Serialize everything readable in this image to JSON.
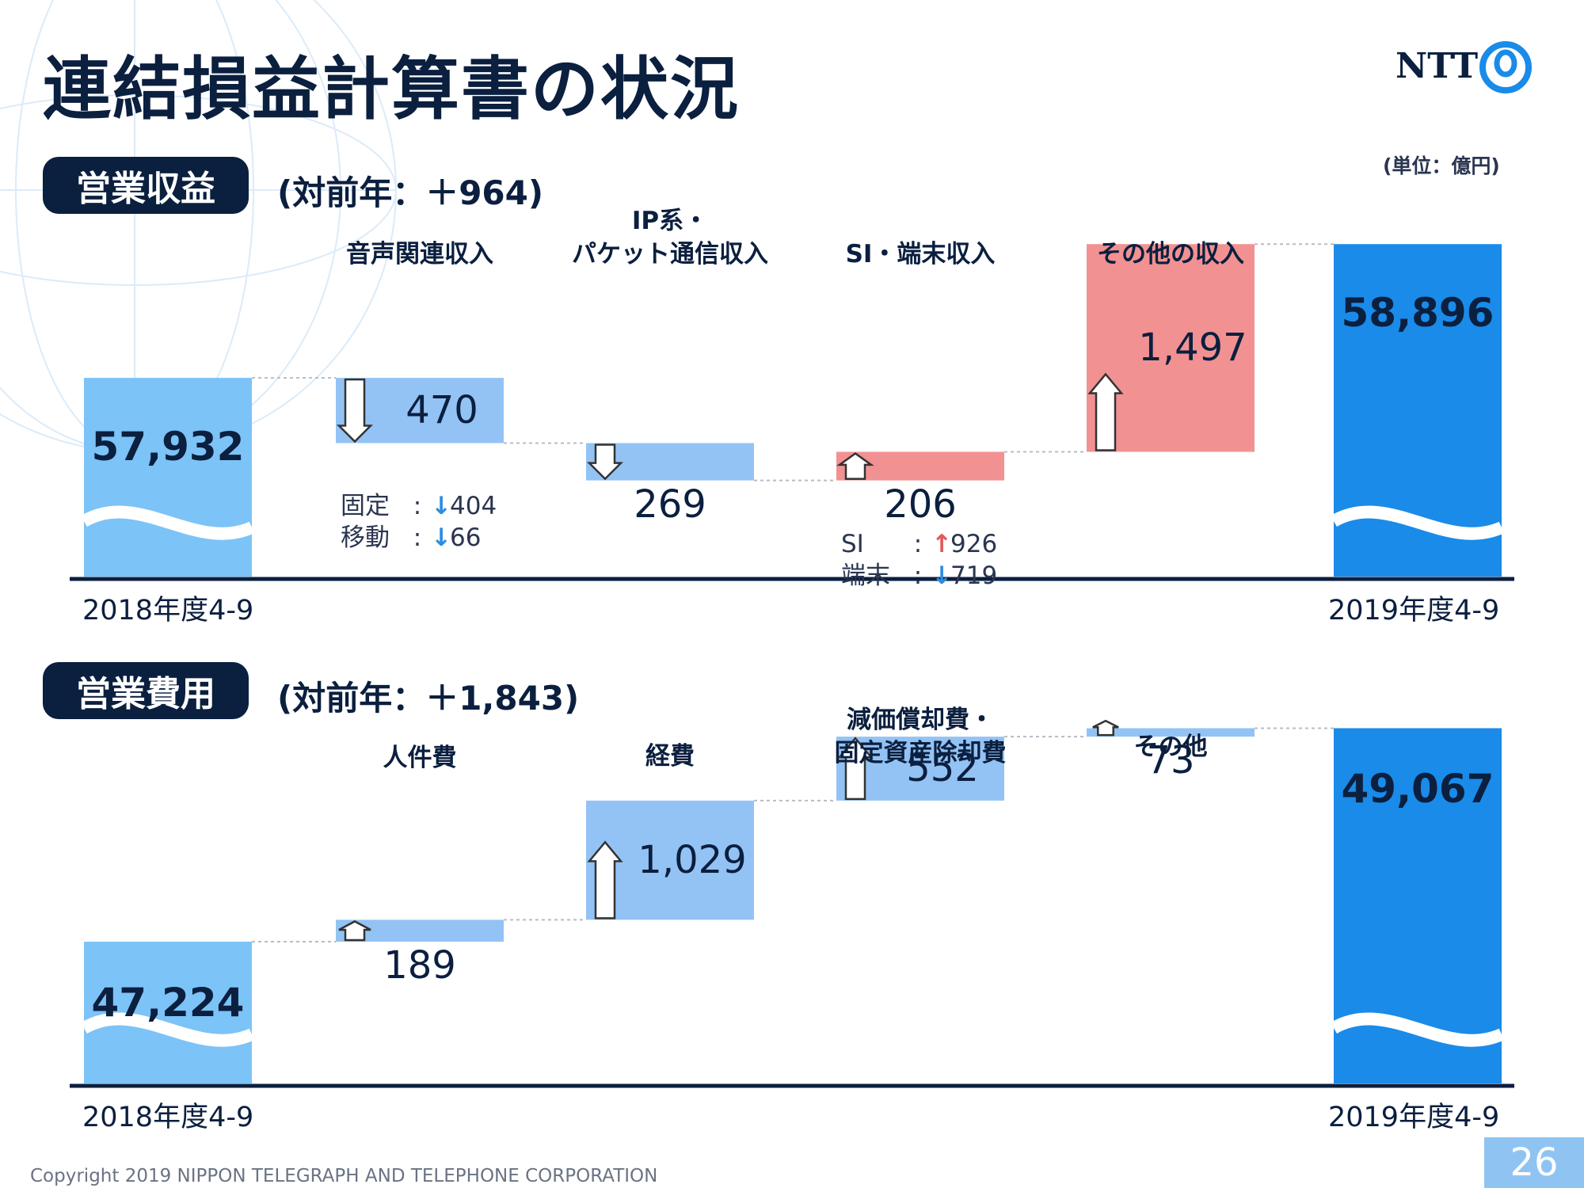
{
  "title": "連結損益計算書の状況",
  "logo_text": "NTT",
  "unit": "(単位：億円)",
  "colors": {
    "navy": "#0b1f3f",
    "total_bar": "#7cc3f7",
    "total_bar_end": "#1a8be8",
    "decrease_bar": "#93c3f4",
    "increase_bar": "#f29191",
    "expense_bar": "#93c3f4"
  },
  "revenue": {
    "badge": "営業収益",
    "delta": "(対前年：＋964)",
    "chart_data": {
      "type": "bar",
      "subtype": "waterfall",
      "categories": [
        "2018年度4-9",
        "音声関連収入",
        "IP系・パケット通信収入",
        "SI・端末収入",
        "その他の収入",
        "2019年度4-9"
      ],
      "start": 57932,
      "changes": [
        -470,
        -269,
        206,
        1497
      ],
      "end": 58896,
      "start_label": "57,932",
      "end_label": "58,896",
      "change_labels": [
        "470",
        "269",
        "206",
        "1,497"
      ],
      "category_labels": [
        "音声関連収入",
        "IP系・\nパケット通信収入",
        "SI・端末収入",
        "その他の収入"
      ],
      "period_start": "2018年度4-9",
      "period_end": "2019年度4-9",
      "breakdowns": [
        [
          {
            "name": "固定",
            "direction": "down",
            "value": "404"
          },
          {
            "name": "移動",
            "direction": "down",
            "value": "66"
          }
        ],
        [],
        [
          {
            "name": "SI",
            "direction": "up",
            "value": "926"
          },
          {
            "name": "端末",
            "direction": "down",
            "value": "719"
          }
        ],
        []
      ]
    }
  },
  "expenses": {
    "badge": "営業費用",
    "delta": "(対前年：＋1,843)",
    "chart_data": {
      "type": "bar",
      "subtype": "waterfall",
      "categories": [
        "2018年度4-9",
        "人件費",
        "経費",
        "減価償却費・固定資産除却費",
        "その他",
        "2019年度4-9"
      ],
      "start": 47224,
      "changes": [
        189,
        1029,
        552,
        73
      ],
      "end": 49067,
      "start_label": "47,224",
      "end_label": "49,067",
      "change_labels": [
        "189",
        "1,029",
        "552",
        "73"
      ],
      "category_labels": [
        "人件費",
        "経費",
        "減価償却費・\n固定資産除却費",
        "その他"
      ],
      "period_start": "2018年度4-9",
      "period_end": "2019年度4-9",
      "breakdowns": [
        [],
        [],
        [],
        []
      ]
    }
  },
  "footer": "Copyright 2019 NIPPON TELEGRAPH AND TELEPHONE CORPORATION",
  "page_number": "26"
}
